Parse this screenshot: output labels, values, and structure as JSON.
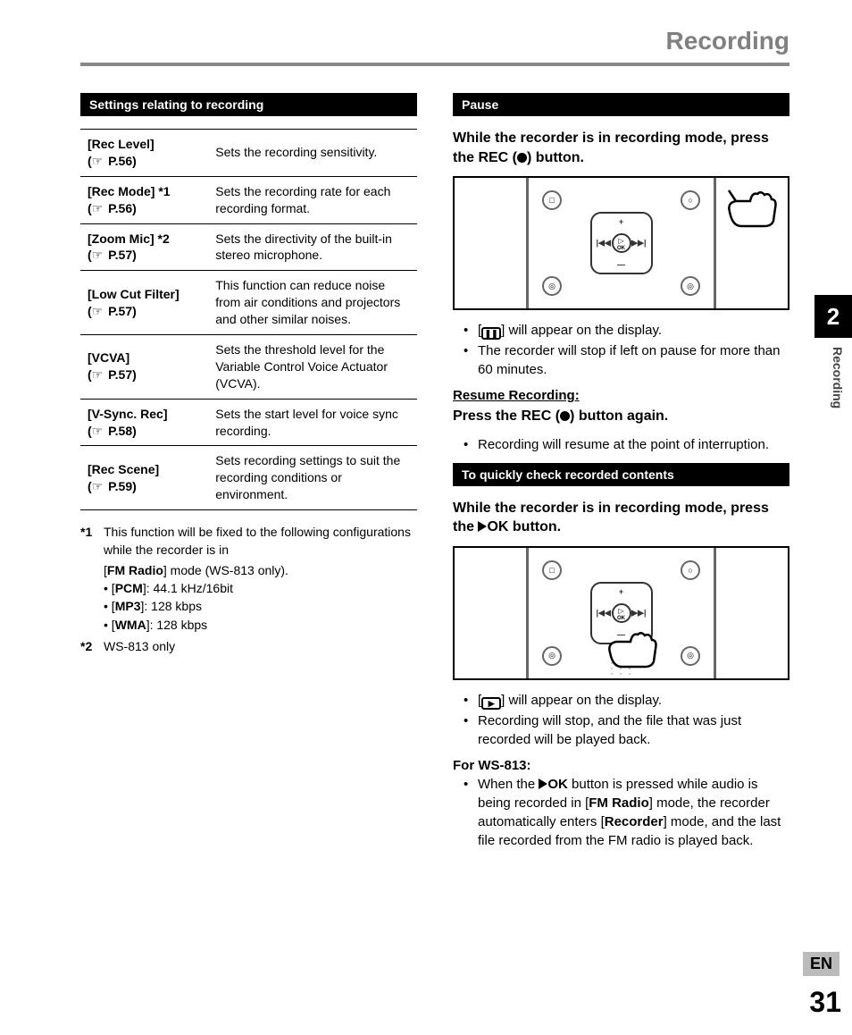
{
  "header": {
    "title": "Recording"
  },
  "side": {
    "chapter": "2",
    "section": "Recording",
    "lang": "EN",
    "page": "31"
  },
  "left": {
    "section_header": "Settings relating to recording",
    "table": [
      {
        "name": "[Rec Level]",
        "ref": "P.56",
        "desc": "Sets the recording sensitivity."
      },
      {
        "name": "[Rec Mode] *1",
        "ref": "P.56",
        "desc": "Sets the recording rate for each recording format."
      },
      {
        "name": "[Zoom Mic] *2",
        "ref": "P.57",
        "desc": "Sets the directivity of the built-in stereo microphone."
      },
      {
        "name": "[Low Cut Filter]",
        "ref": "P.57",
        "desc": "This function can reduce noise from air conditions and projectors and other similar noises."
      },
      {
        "name": "[VCVA]",
        "ref": "P.57",
        "desc": "Sets the threshold level for the Variable Control Voice Actuator (VCVA)."
      },
      {
        "name": "[V-Sync. Rec]",
        "ref": "P.58",
        "desc": "Sets the start level for voice sync recording."
      },
      {
        "name": "[Rec Scene]",
        "ref": "P.59",
        "desc": "Sets recording settings to suit the recording conditions or environment."
      }
    ],
    "footnotes": {
      "f1_lead": "This function will be fixed to the following configurations while the recorder is in",
      "f1_mode_pre": "[",
      "f1_mode_bold": "FM Radio",
      "f1_mode_post": "] mode (WS-813 only).",
      "f1_bullets": [
        {
          "pre": "[",
          "bold": "PCM",
          "post": "]: 44.1 kHz/16bit"
        },
        {
          "pre": "[",
          "bold": "MP3",
          "post": "]: 128 kbps"
        },
        {
          "pre": "[",
          "bold": "WMA",
          "post": "]: 128 kbps"
        }
      ],
      "f2": "WS-813 only"
    }
  },
  "right": {
    "pause_header": "Pause",
    "pause_instr_1": "While the recorder is in recording mode, press the ",
    "pause_instr_rec": "REC",
    "pause_instr_2": " (",
    "pause_instr_3": ") button.",
    "pause_notes": [
      "] will appear on the display.",
      "The recorder will stop if left on pause for more than 60 minutes."
    ],
    "pause_icon_label": "❚❚",
    "resume_head": "Resume Recording:",
    "resume_instr_1": "Press the ",
    "resume_instr_rec": "REC",
    "resume_instr_2": " (",
    "resume_instr_3": ") button again.",
    "resume_note": "Recording will resume at the point of interruption.",
    "check_header": "To quickly check recorded contents",
    "check_instr_1": "While the recorder is in recording mode, press the ",
    "check_instr_ok": "OK",
    "check_instr_2": " button.",
    "check_notes_1": "] will appear on the display.",
    "check_notes_2": "Recording will stop, and the file that was just recorded will be played back.",
    "check_icon_label": "▶",
    "ws813_head": "For WS-813:",
    "ws813_pre": "When the ",
    "ws813_ok": "OK",
    "ws813_mid1": " button is pressed while audio is being recorded in [",
    "ws813_fm": "FM Radio",
    "ws813_mid2": "] mode, the recorder automatically enters [",
    "ws813_rec": "Recorder",
    "ws813_end": "] mode, and the last file recorded from the FM radio is played back."
  }
}
